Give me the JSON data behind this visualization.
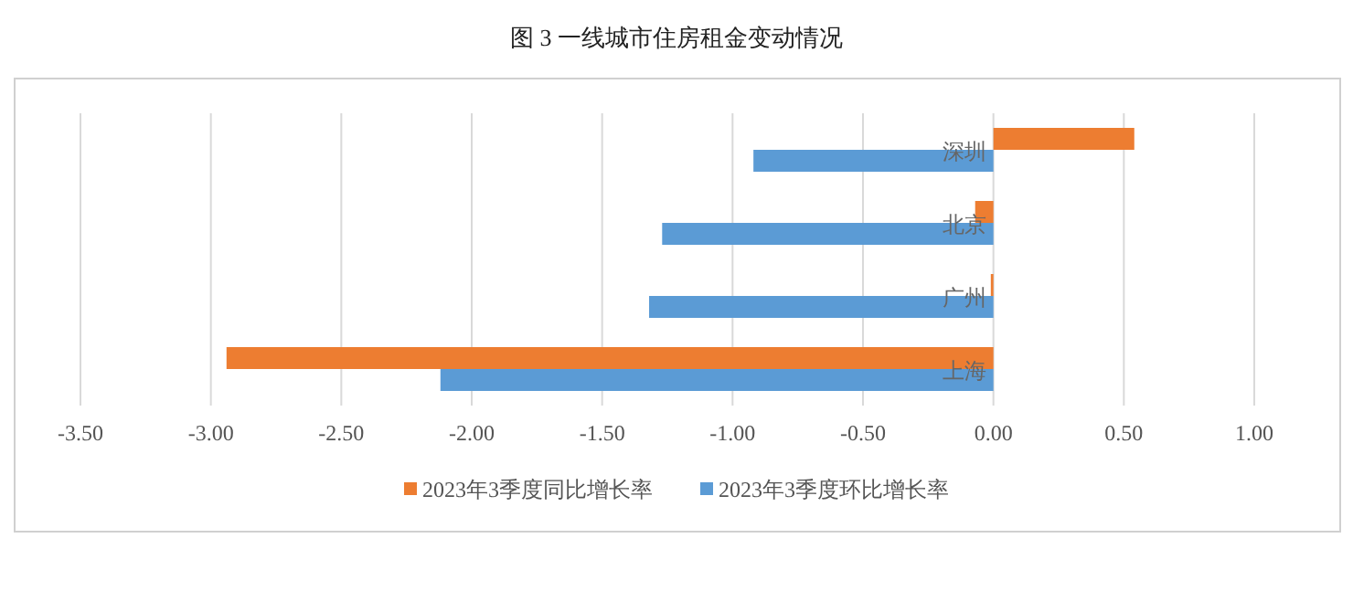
{
  "chart_data": {
    "type": "bar",
    "orientation": "horizontal",
    "title": "图 3  一线城市住房租金变动情况",
    "categories": [
      "深圳",
      "北京",
      "广州",
      "上海"
    ],
    "series": [
      {
        "name": "2023年3季度同比增长率",
        "color": "#ed7d31",
        "values": [
          0.54,
          -0.07,
          -0.01,
          -2.94
        ]
      },
      {
        "name": "2023年3季度环比增长率",
        "color": "#5b9bd5",
        "values": [
          -0.92,
          -1.27,
          -1.32,
          -2.12
        ]
      }
    ],
    "xlim": [
      -3.5,
      1.0
    ],
    "xticks": [
      {
        "value": -3.5,
        "label": "-3.50"
      },
      {
        "value": -3.0,
        "label": "-3.00"
      },
      {
        "value": -2.5,
        "label": "-2.50"
      },
      {
        "value": -2.0,
        "label": "-2.00"
      },
      {
        "value": -1.5,
        "label": "-1.50"
      },
      {
        "value": -1.0,
        "label": "-1.00"
      },
      {
        "value": -0.5,
        "label": "-0.50"
      },
      {
        "value": 0,
        "label": "0.00"
      },
      {
        "value": 0.5,
        "label": "0.50"
      },
      {
        "value": 1.0,
        "label": "1.00"
      }
    ],
    "grid": "x",
    "legend": "bottom"
  }
}
